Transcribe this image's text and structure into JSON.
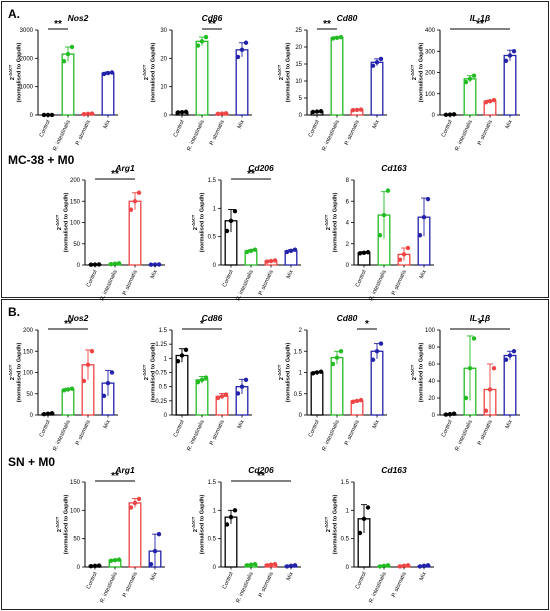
{
  "figure": {
    "panel_a_letter": "A.",
    "panel_b_letter": "B.",
    "row_labels": [
      "MC-38 + M0",
      "SN + M0"
    ],
    "y_label_main": "2",
    "y_label_sup": "-ΔΔCT",
    "y_label_sub": "(normalised to Gapdh)"
  },
  "colors": {
    "Control": "#000000",
    "R. intestinalis": "#22bb22",
    "P. stomatis": "#ee4444",
    "Mix": "#2222aa"
  },
  "chart_data": [
    {
      "id": "A1",
      "type": "bar",
      "title": "Nos2",
      "categories": [
        "Control",
        "R. intestinalis",
        "P. stomatis",
        "Mix"
      ],
      "values": [
        2,
        2150,
        40,
        1480
      ],
      "err": [
        0,
        250,
        10,
        40
      ],
      "points": [
        [
          1,
          2,
          3
        ],
        [
          1900,
          2150,
          2400
        ],
        [
          30,
          40,
          50
        ],
        [
          1450,
          1480,
          1500
        ]
      ],
      "ylim": [
        0,
        3000
      ],
      "yticks": [
        0,
        1000,
        2000,
        3000
      ],
      "sig": {
        "from": 0,
        "to": 1,
        "label": "**"
      }
    },
    {
      "id": "A2",
      "type": "bar",
      "title": "Cd86",
      "categories": [
        "Control",
        "R. intestinalis",
        "P. stomatis",
        "Mix"
      ],
      "values": [
        1,
        26,
        0.5,
        23
      ],
      "err": [
        0.2,
        1.5,
        0.1,
        2.5
      ],
      "points": [
        [
          0.9,
          1,
          1.1
        ],
        [
          24.5,
          26,
          27.5
        ],
        [
          0.4,
          0.5,
          0.6
        ],
        [
          20.5,
          23,
          25.5
        ]
      ],
      "ylim": [
        0,
        30
      ],
      "yticks": [
        0,
        10,
        20,
        30
      ],
      "sig": {
        "from": 1,
        "to": 2,
        "label": "**"
      }
    },
    {
      "id": "A3",
      "type": "bar",
      "title": "Cd80",
      "categories": [
        "Control",
        "R. intestinalis",
        "P. stomatis",
        "Mix"
      ],
      "values": [
        1,
        22.7,
        1.5,
        15.5
      ],
      "err": [
        0.1,
        0.3,
        0.2,
        1
      ],
      "points": [
        [
          0.9,
          1,
          1.1
        ],
        [
          22.5,
          22.7,
          22.9
        ],
        [
          1.4,
          1.5,
          1.6
        ],
        [
          14.5,
          15.5,
          16.5
        ]
      ],
      "ylim": [
        0,
        25
      ],
      "yticks": [
        0,
        5,
        10,
        15,
        20,
        25
      ],
      "sig": {
        "from": 0,
        "to": 1,
        "label": "**"
      }
    },
    {
      "id": "A4",
      "type": "bar",
      "title": "IL-1β",
      "categories": [
        "Control",
        "R. intestinalis",
        "P. stomatis",
        "Mix"
      ],
      "values": [
        2,
        170,
        65,
        280
      ],
      "err": [
        0.5,
        15,
        5,
        25
      ],
      "points": [
        [
          1,
          2,
          3
        ],
        [
          155,
          170,
          185
        ],
        [
          60,
          65,
          70
        ],
        [
          255,
          280,
          300
        ]
      ],
      "ylim": [
        0,
        400
      ],
      "yticks": [
        0,
        100,
        200,
        300,
        400
      ],
      "sig": {
        "from": 0,
        "to": 3,
        "label": "**"
      }
    },
    {
      "id": "A5",
      "type": "bar",
      "title": "Arg1",
      "categories": [
        "Control",
        "R. intestinalis",
        "P. stomatis",
        "Mix"
      ],
      "values": [
        1,
        3,
        150,
        1
      ],
      "err": [
        0.2,
        1,
        20,
        0.3
      ],
      "points": [
        [
          0.8,
          1,
          1.2
        ],
        [
          2,
          3,
          4
        ],
        [
          130,
          150,
          170
        ],
        [
          0.8,
          1,
          1.2
        ]
      ],
      "ylim": [
        0,
        200
      ],
      "yticks": [
        0,
        50,
        100,
        150,
        200
      ],
      "sig": {
        "from": 0,
        "to": 2,
        "label": "**"
      }
    },
    {
      "id": "A6",
      "type": "bar",
      "title": "Cd206",
      "categories": [
        "Control",
        "R. intestinalis",
        "P. stomatis",
        "Mix"
      ],
      "values": [
        0.78,
        0.25,
        0.07,
        0.25
      ],
      "err": [
        0.2,
        0.02,
        0.01,
        0.02
      ],
      "points": [
        [
          0.6,
          0.78,
          0.95
        ],
        [
          0.23,
          0.25,
          0.27
        ],
        [
          0.06,
          0.07,
          0.08
        ],
        [
          0.23,
          0.25,
          0.27
        ]
      ],
      "ylim": [
        0,
        1.5
      ],
      "yticks": [
        0,
        0.5,
        1.0,
        1.5
      ],
      "sig": {
        "from": 0,
        "to": 2,
        "label": "**"
      }
    },
    {
      "id": "A7",
      "type": "bar",
      "title": "Cd163",
      "categories": [
        "Control",
        "R. intestinalis",
        "P. stomatis",
        "Mix"
      ],
      "values": [
        1.15,
        4.7,
        1,
        4.5
      ],
      "err": [
        0.1,
        2.2,
        0.6,
        1.8
      ],
      "points": [
        [
          1.1,
          1.15,
          1.2
        ],
        [
          2.8,
          4.7,
          7
        ],
        [
          0.5,
          1,
          1.6
        ],
        [
          2.8,
          4.5,
          6.2
        ]
      ],
      "ylim": [
        0,
        8
      ],
      "yticks": [
        0,
        2,
        4,
        6,
        8
      ],
      "sig": null
    },
    {
      "id": "B1",
      "type": "bar",
      "title": "Nos2",
      "categories": [
        "Control",
        "R. intestinalis",
        "P. stomatis",
        "Mix"
      ],
      "values": [
        3,
        60,
        118,
        75
      ],
      "err": [
        1,
        3,
        35,
        30
      ],
      "points": [
        [
          2,
          3,
          4
        ],
        [
          58,
          60,
          62
        ],
        [
          80,
          118,
          150
        ],
        [
          45,
          75,
          100
        ]
      ],
      "ylim": [
        0,
        200
      ],
      "yticks": [
        0,
        50,
        100,
        150,
        200
      ],
      "sig": {
        "from": 0,
        "to": 2,
        "label": "**"
      }
    },
    {
      "id": "B2",
      "type": "bar",
      "title": "Cd86",
      "categories": [
        "Control",
        "R. intestinalis",
        "P. stomatis",
        "Mix"
      ],
      "values": [
        1.05,
        0.62,
        0.33,
        0.5
      ],
      "err": [
        0.12,
        0.06,
        0.05,
        0.13
      ],
      "points": [
        [
          0.95,
          1.05,
          1.15
        ],
        [
          0.58,
          0.62,
          0.66
        ],
        [
          0.3,
          0.33,
          0.36
        ],
        [
          0.38,
          0.5,
          0.62
        ]
      ],
      "ylim": [
        0,
        1.5
      ],
      "yticks": [
        0,
        0.25,
        0.5,
        0.75,
        1.0,
        1.25,
        1.5
      ],
      "sig": {
        "from": 0,
        "to": 2,
        "label": "*"
      }
    },
    {
      "id": "B3",
      "type": "bar",
      "title": "Cd80",
      "categories": [
        "Control",
        "R. intestinalis",
        "P. stomatis",
        "Mix"
      ],
      "values": [
        1,
        1.35,
        0.33,
        1.5
      ],
      "err": [
        0.02,
        0.15,
        0.02,
        0.18
      ],
      "points": [
        [
          0.98,
          1,
          1.02
        ],
        [
          1.2,
          1.35,
          1.5
        ],
        [
          0.31,
          0.33,
          0.35
        ],
        [
          1.3,
          1.5,
          1.68
        ]
      ],
      "ylim": [
        0,
        2
      ],
      "yticks": [
        0,
        0.5,
        1.0,
        1.5,
        2.0
      ],
      "sig": {
        "from": 2,
        "to": 3,
        "label": "*"
      }
    },
    {
      "id": "B4",
      "type": "bar",
      "title": "IL-1β",
      "categories": [
        "Control",
        "R. intestinalis",
        "P. stomatis",
        "Mix"
      ],
      "values": [
        1,
        55,
        30,
        70
      ],
      "err": [
        0.5,
        38,
        30,
        5
      ],
      "points": [
        [
          0.5,
          1,
          1.5
        ],
        [
          20,
          55,
          90
        ],
        [
          5,
          30,
          55
        ],
        [
          65,
          70,
          75
        ]
      ],
      "ylim": [
        0,
        100
      ],
      "yticks": [
        0,
        20,
        40,
        60,
        80,
        100
      ],
      "sig": {
        "from": 0,
        "to": 3,
        "label": "*"
      }
    },
    {
      "id": "B5",
      "type": "bar",
      "title": "Arg1",
      "categories": [
        "Control",
        "R. intestinalis",
        "P. stomatis",
        "Mix"
      ],
      "values": [
        2,
        12,
        113,
        28
      ],
      "err": [
        0.5,
        1,
        8,
        30
      ],
      "points": [
        [
          1.5,
          2,
          2.5
        ],
        [
          11,
          12,
          13
        ],
        [
          105,
          113,
          120
        ],
        [
          5,
          28,
          58
        ]
      ],
      "ylim": [
        0,
        150
      ],
      "yticks": [
        0,
        50,
        100,
        150
      ],
      "sig": {
        "from": 0,
        "to": 2,
        "label": "**"
      }
    },
    {
      "id": "B6",
      "type": "bar",
      "title": "Cd206",
      "categories": [
        "Control",
        "R. intestinalis",
        "P. stomatis",
        "Mix"
      ],
      "values": [
        0.88,
        0.04,
        0.04,
        0.02
      ],
      "err": [
        0.12,
        0.01,
        0.01,
        0.01
      ],
      "points": [
        [
          0.75,
          0.88,
          1.0
        ],
        [
          0.03,
          0.04,
          0.05
        ],
        [
          0.03,
          0.04,
          0.05
        ],
        [
          0.01,
          0.02,
          0.03
        ]
      ],
      "ylim": [
        0,
        1.5
      ],
      "yticks": [
        0,
        0.5,
        1.0,
        1.5
      ],
      "sig": {
        "from": 0,
        "to": 3,
        "label": "**"
      }
    },
    {
      "id": "B7",
      "type": "bar",
      "title": "Cd163",
      "categories": [
        "Control",
        "R. intestinalis",
        "P. stomatis",
        "Mix"
      ],
      "values": [
        0.85,
        0.02,
        0.02,
        0.02
      ],
      "err": [
        0.25,
        0.01,
        0.01,
        0.01
      ],
      "points": [
        [
          0.6,
          0.85,
          1.05
        ],
        [
          0.01,
          0.02,
          0.03
        ],
        [
          0.01,
          0.02,
          0.03
        ],
        [
          0.01,
          0.02,
          0.03
        ]
      ],
      "ylim": [
        0,
        1.5
      ],
      "yticks": [
        0,
        0.5,
        1.0,
        1.5
      ],
      "sig": null
    }
  ]
}
